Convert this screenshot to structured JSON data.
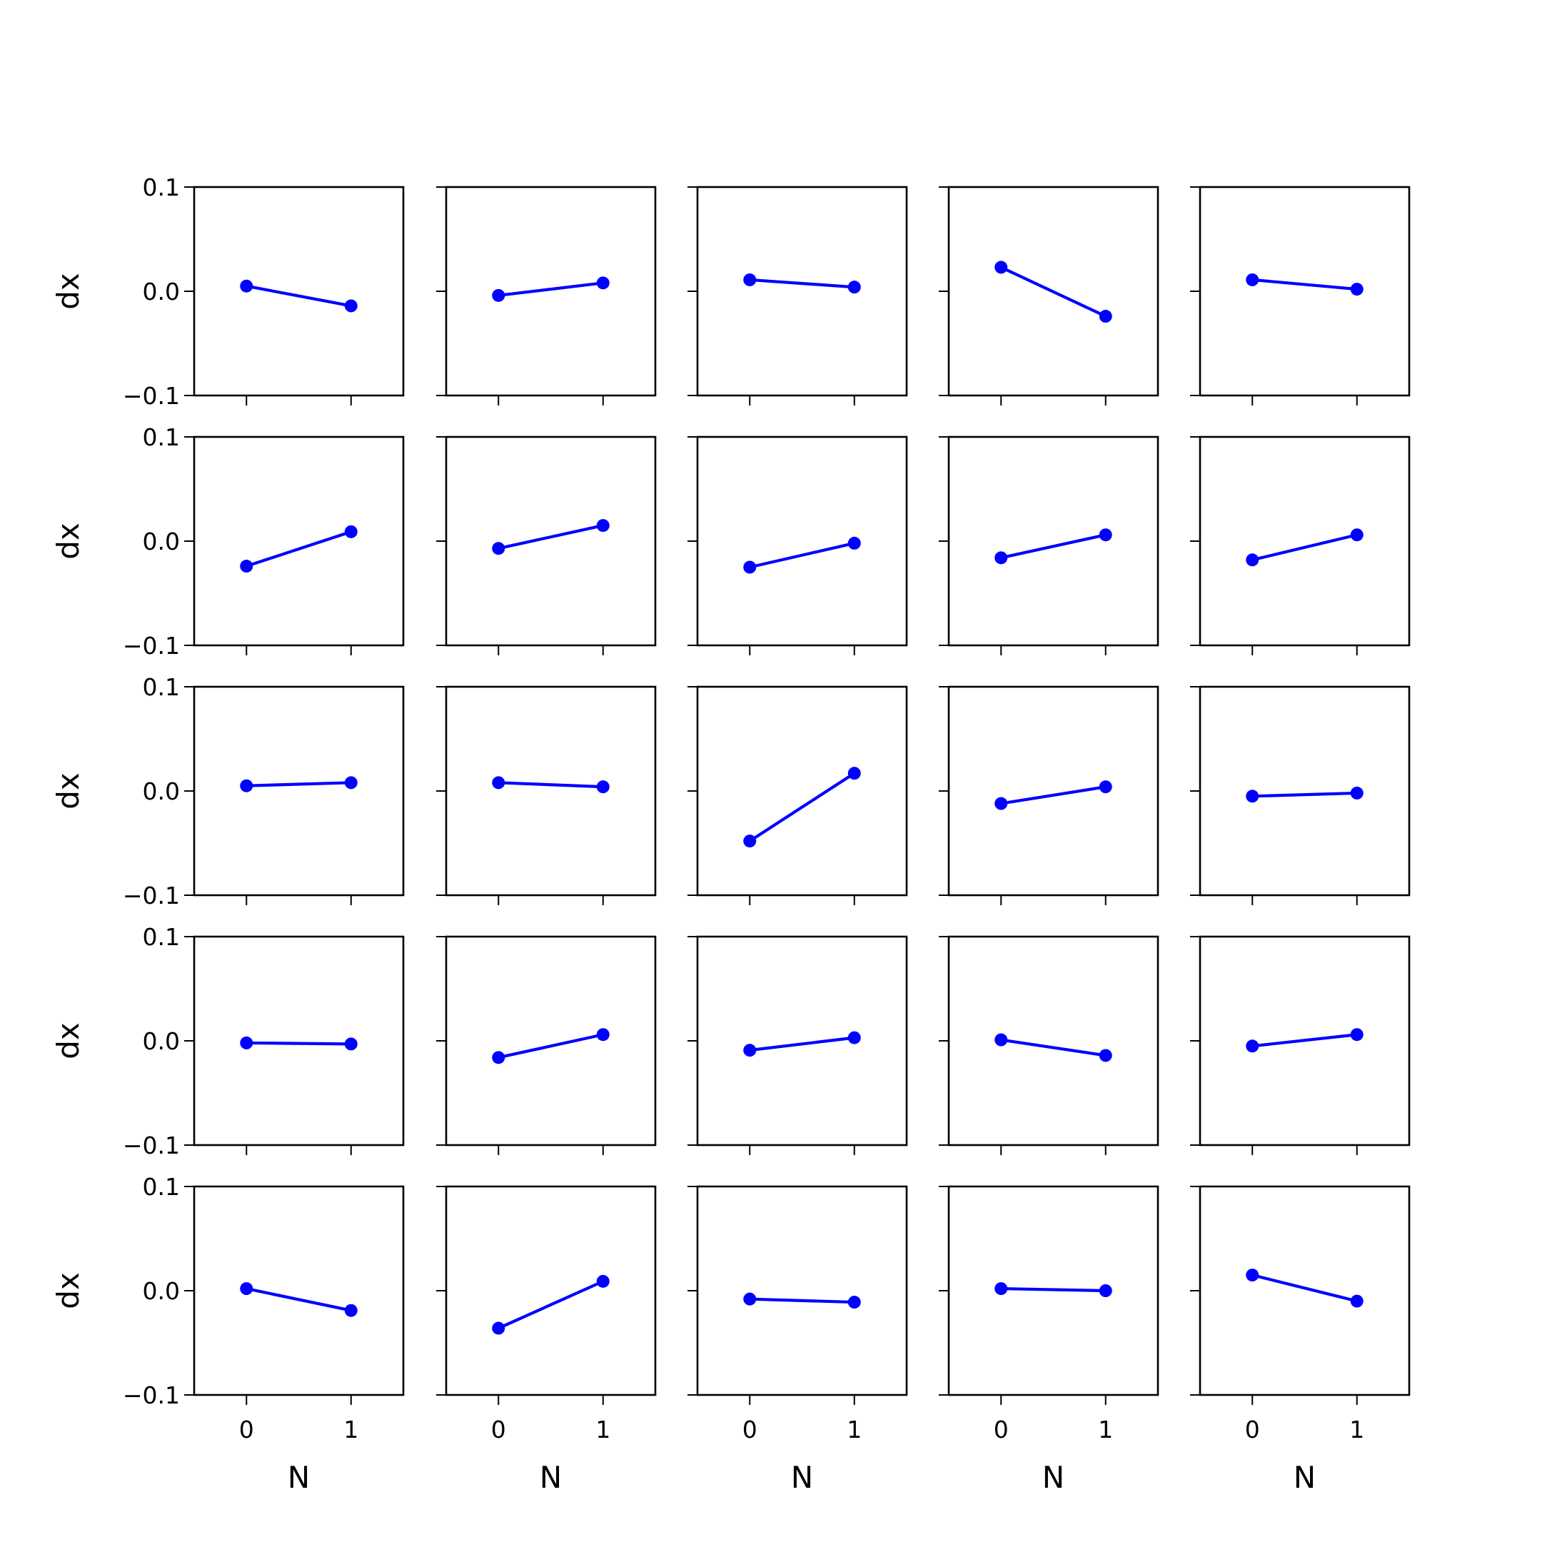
{
  "colors": {
    "series": "#0000ff",
    "axes": "#000000",
    "background": "#ffffff"
  },
  "chart_data": {
    "type": "line",
    "layout": {
      "rows": 5,
      "cols": 5
    },
    "shared_x_ticks": [
      "0",
      "1"
    ],
    "shared_y_ticks": [
      "0.1",
      "0.0",
      "−0.1"
    ],
    "xlabel": "N",
    "ylabel": "dx",
    "xlim": [
      -0.5,
      1.5
    ],
    "ylim": [
      -0.1,
      0.1
    ],
    "x": [
      0,
      1
    ],
    "grid": false,
    "subplots": [
      {
        "row": 0,
        "col": 0,
        "y": [
          0.005,
          -0.014
        ]
      },
      {
        "row": 0,
        "col": 1,
        "y": [
          -0.004,
          0.008
        ]
      },
      {
        "row": 0,
        "col": 2,
        "y": [
          0.011,
          0.004
        ]
      },
      {
        "row": 0,
        "col": 3,
        "y": [
          0.023,
          -0.024
        ]
      },
      {
        "row": 0,
        "col": 4,
        "y": [
          0.011,
          0.002
        ]
      },
      {
        "row": 1,
        "col": 0,
        "y": [
          -0.024,
          0.009
        ]
      },
      {
        "row": 1,
        "col": 1,
        "y": [
          -0.007,
          0.015
        ]
      },
      {
        "row": 1,
        "col": 2,
        "y": [
          -0.025,
          -0.002
        ]
      },
      {
        "row": 1,
        "col": 3,
        "y": [
          -0.016,
          0.006
        ]
      },
      {
        "row": 1,
        "col": 4,
        "y": [
          -0.018,
          0.006
        ]
      },
      {
        "row": 2,
        "col": 0,
        "y": [
          0.005,
          0.008
        ]
      },
      {
        "row": 2,
        "col": 1,
        "y": [
          0.008,
          0.004
        ]
      },
      {
        "row": 2,
        "col": 2,
        "y": [
          -0.048,
          0.017
        ]
      },
      {
        "row": 2,
        "col": 3,
        "y": [
          -0.012,
          0.004
        ]
      },
      {
        "row": 2,
        "col": 4,
        "y": [
          -0.005,
          -0.002
        ]
      },
      {
        "row": 3,
        "col": 0,
        "y": [
          -0.002,
          -0.003
        ]
      },
      {
        "row": 3,
        "col": 1,
        "y": [
          -0.016,
          0.006
        ]
      },
      {
        "row": 3,
        "col": 2,
        "y": [
          -0.009,
          0.003
        ]
      },
      {
        "row": 3,
        "col": 3,
        "y": [
          0.001,
          -0.014
        ]
      },
      {
        "row": 3,
        "col": 4,
        "y": [
          -0.005,
          0.006
        ]
      },
      {
        "row": 4,
        "col": 0,
        "y": [
          0.002,
          -0.019
        ]
      },
      {
        "row": 4,
        "col": 1,
        "y": [
          -0.036,
          0.009
        ]
      },
      {
        "row": 4,
        "col": 2,
        "y": [
          -0.008,
          -0.011
        ]
      },
      {
        "row": 4,
        "col": 3,
        "y": [
          0.002,
          0.0
        ]
      },
      {
        "row": 4,
        "col": 4,
        "y": [
          0.015,
          -0.01
        ]
      }
    ]
  }
}
